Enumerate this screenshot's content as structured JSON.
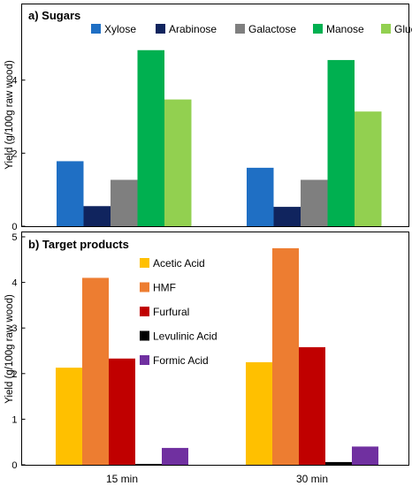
{
  "chart_data": [
    {
      "type": "bar",
      "title": "a) Sugars",
      "ylabel": "Yield (g/100g raw wood)",
      "ylim": [
        0,
        6
      ],
      "yticks": [
        "0",
        "2",
        "4"
      ],
      "categories": [
        "15 min",
        "30 min"
      ],
      "show_categories": false,
      "legend": "top, one row",
      "series": [
        {
          "name": "Xylose",
          "color": "#1f6fc4",
          "values": [
            1.78,
            1.6
          ]
        },
        {
          "name": "Arabinose",
          "color": "#10245e",
          "values": [
            0.55,
            0.53
          ]
        },
        {
          "name": "Galactose",
          "color": "#7f7f7f",
          "values": [
            1.27,
            1.27
          ]
        },
        {
          "name": "Manose",
          "color": "#00b050",
          "values": [
            4.82,
            4.55
          ]
        },
        {
          "name": "Glucose",
          "color": "#92d050",
          "values": [
            3.47,
            3.14
          ]
        }
      ]
    },
    {
      "type": "bar",
      "title": "b) Target products",
      "ylabel": "Yield (g/100g raw wood)",
      "ylim": [
        0,
        5
      ],
      "yticks": [
        "0",
        "1",
        "2",
        "3",
        "4",
        "5"
      ],
      "categories": [
        "15 min",
        "30 min"
      ],
      "show_categories": true,
      "legend": "top-left, vertical",
      "series": [
        {
          "name": "Acetic Acid",
          "color": "#ffc000",
          "values": [
            2.13,
            2.25
          ]
        },
        {
          "name": "HMF",
          "color": "#ed7d31",
          "values": [
            4.1,
            4.75
          ]
        },
        {
          "name": "Furfural",
          "color": "#c00000",
          "values": [
            2.33,
            2.58
          ]
        },
        {
          "name": "Levulinic Acid",
          "color": "#000000",
          "values": [
            0.02,
            0.06
          ]
        },
        {
          "name": "Formic Acid",
          "color": "#7030a0",
          "values": [
            0.37,
            0.4
          ]
        }
      ]
    }
  ]
}
